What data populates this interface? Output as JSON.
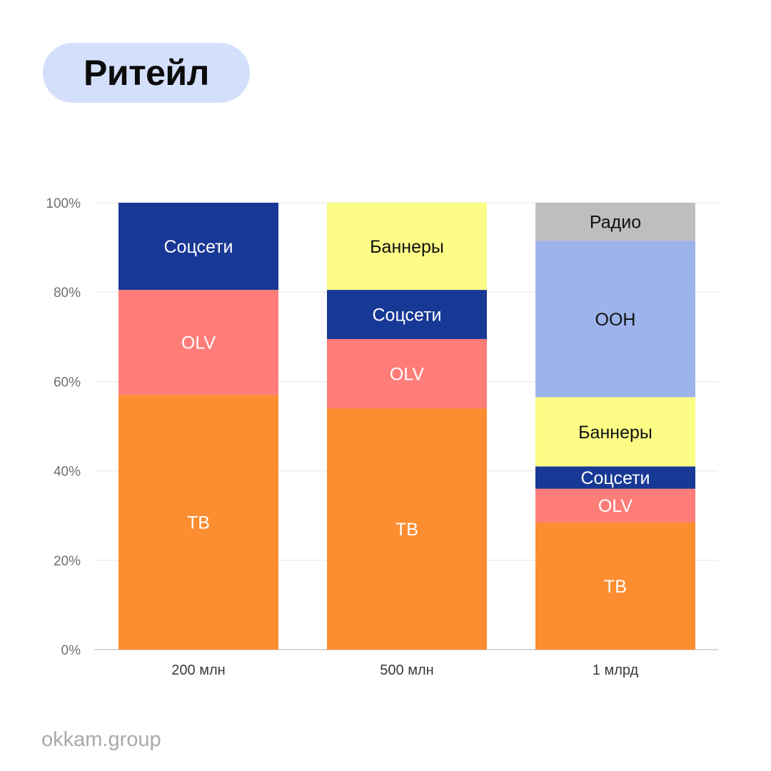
{
  "header": {
    "title": "Ритейл"
  },
  "footer": {
    "brand": "okkam.group"
  },
  "chart_data": {
    "type": "bar",
    "stacked": true,
    "categories": [
      "200 млн",
      "500 млн",
      "1 млрд"
    ],
    "ylim": [
      0,
      100
    ],
    "yticks": [
      0,
      20,
      40,
      60,
      80,
      100
    ],
    "ytick_labels": [
      "0%",
      "20%",
      "40%",
      "60%",
      "80%",
      "100%"
    ],
    "grid": true,
    "legend": "none",
    "bars": [
      {
        "category": "200 млн",
        "segments": [
          {
            "name": "ТВ",
            "value": 57,
            "color": "#fd8d31",
            "label_color": "#ffffff"
          },
          {
            "name": "OLV",
            "value": 23.5,
            "color": "#fe7d78",
            "label_color": "#ffffff"
          },
          {
            "name": "Соцсети",
            "value": 19.5,
            "color": "#173894",
            "label_color": "#ffffff"
          }
        ]
      },
      {
        "category": "500 млн",
        "segments": [
          {
            "name": "ТВ",
            "value": 54,
            "color": "#fd8d31",
            "label_color": "#ffffff"
          },
          {
            "name": "OLV",
            "value": 15.5,
            "color": "#fe7d78",
            "label_color": "#ffffff"
          },
          {
            "name": "Соцсети",
            "value": 11,
            "color": "#173894",
            "label_color": "#ffffff"
          },
          {
            "name": "Баннеры",
            "value": 19.5,
            "color": "#fcfc86",
            "label_color": "#111111"
          }
        ]
      },
      {
        "category": "1 млрд",
        "segments": [
          {
            "name": "ТВ",
            "value": 28.5,
            "color": "#fd8d31",
            "label_color": "#ffffff"
          },
          {
            "name": "OLV",
            "value": 7.5,
            "color": "#fe7d78",
            "label_color": "#ffffff"
          },
          {
            "name": "Соцсети",
            "value": 5,
            "color": "#173894",
            "label_color": "#ffffff"
          },
          {
            "name": "Баннеры",
            "value": 15.5,
            "color": "#fcfc86",
            "label_color": "#111111"
          },
          {
            "name": "ООН",
            "value": 35,
            "color": "#9db3ec",
            "label_color": "#111111"
          },
          {
            "name": "Радио",
            "value": 8.5,
            "color": "#bebebe",
            "label_color": "#111111"
          }
        ]
      }
    ]
  }
}
